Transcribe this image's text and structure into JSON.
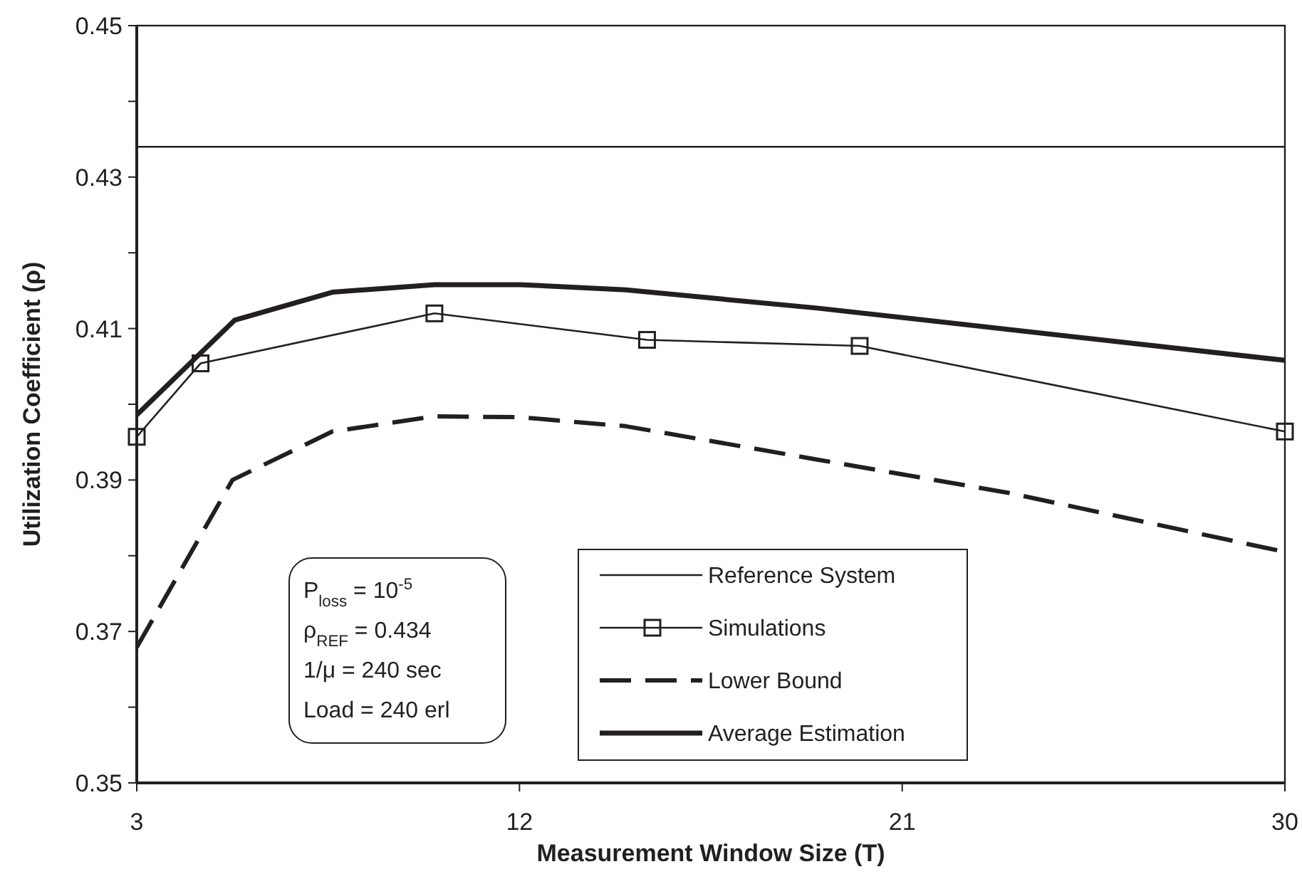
{
  "chart_data": {
    "type": "line",
    "xlabel": "Measurement Window Size (T)",
    "ylabel": "Utilization Coefficient (ρ)",
    "xlim": [
      3,
      30
    ],
    "xticks": [
      3,
      12,
      21,
      30
    ],
    "ylim": [
      0.35,
      0.45
    ],
    "yticks": [
      0.35,
      {
        "value": 0.36,
        "label": null
      },
      0.37,
      {
        "value": 0.38,
        "label": null
      },
      0.39,
      {
        "value": 0.4,
        "label": null
      },
      0.41,
      {
        "value": 0.42,
        "label": null
      },
      0.43,
      {
        "value": 0.44,
        "label": null
      },
      0.45
    ],
    "grid": false,
    "legend": "bottom right",
    "series": [
      {
        "name": "Reference System",
        "color": "#231f20",
        "x": [
          3,
          30
        ],
        "values": [
          0.434,
          0.434
        ],
        "line_style": "solid",
        "marker": "none"
      },
      {
        "name": "Simulations",
        "color": "#231f20",
        "x": [
          3,
          4.5,
          10,
          15,
          20,
          30
        ],
        "values": [
          0.3957,
          0.4054,
          0.412,
          0.4085,
          0.4077,
          0.3964
        ],
        "line_style": "solid",
        "marker": "square"
      },
      {
        "name": "Lower Bound",
        "color": "#231f20",
        "x": [
          3,
          5.25,
          7.6,
          10,
          12,
          14.5,
          19,
          23.5,
          30
        ],
        "values": [
          0.3679,
          0.39,
          0.3964,
          0.3984,
          0.3983,
          0.3971,
          0.3927,
          0.3883,
          0.3805
        ],
        "line_style": "dashed",
        "marker": "none"
      },
      {
        "name": "Average Estimation",
        "color": "#231f20",
        "x": [
          3,
          5.3,
          7.6,
          10,
          12,
          14.5,
          19,
          30
        ],
        "values": [
          0.3986,
          0.4111,
          0.4148,
          0.4158,
          0.4158,
          0.4151,
          0.4127,
          0.4058
        ],
        "line_style": "solid",
        "marker": "none"
      }
    ],
    "annotations": [
      "P$_{loss}$ = 10$^{-5}$",
      "ρ$_{REF}$ = 0.434",
      "1/μ = 240 sec",
      "Load = 240 erl"
    ]
  }
}
